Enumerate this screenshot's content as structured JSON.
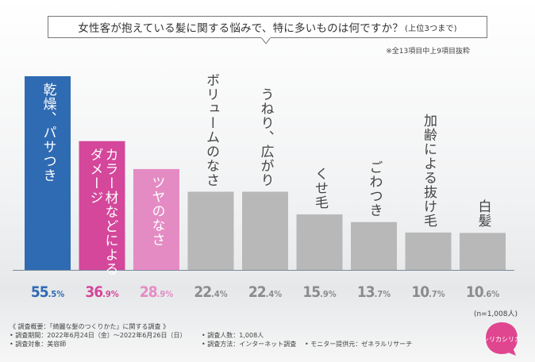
{
  "header": {
    "title": "女性客が抱えている髪に関する悩みで、特に多いものは何ですか？",
    "title_suffix": "(上位3つまで)",
    "note": "※全13項目中上9項目抜粋"
  },
  "chart_data": {
    "type": "bar",
    "categories": [
      "乾燥、パサつき",
      "カラー材などによるダメージ",
      "ツヤのなさ",
      "ボリュームのなさ",
      "うねり、広がり",
      "くせ毛",
      "ごわつき",
      "加齢による抜け毛",
      "白髪"
    ],
    "category_lines": [
      [
        "乾燥、パサつき"
      ],
      [
        "カラー材などによる",
        "ダメージ"
      ],
      [
        "ツヤのなさ"
      ],
      [
        "ボリュームのなさ"
      ],
      [
        "うねり、広がり"
      ],
      [
        "くせ毛"
      ],
      [
        "ごわつき"
      ],
      [
        "加齢による抜け毛"
      ],
      [
        "白髪"
      ]
    ],
    "values": [
      55.5,
      36.9,
      28.9,
      22.4,
      22.4,
      15.9,
      13.7,
      10.7,
      10.6
    ],
    "value_labels": [
      [
        "55",
        ".5%"
      ],
      [
        "36",
        ".9%"
      ],
      [
        "28",
        ".9%"
      ],
      [
        "22",
        ".4%"
      ],
      [
        "22",
        ".4%"
      ],
      [
        "15",
        ".9%"
      ],
      [
        "13",
        ".7%"
      ],
      [
        "10",
        ".7%"
      ],
      [
        "10",
        ".6%"
      ]
    ],
    "ylim": [
      0,
      55.5
    ],
    "colors": [
      "#2f6bb3",
      "#d4479b",
      "#e58bc4",
      "#b8b8b8",
      "#b8b8b8",
      "#b8b8b8",
      "#b8b8b8",
      "#b8b8b8",
      "#b8b8b8"
    ],
    "label_colors": [
      "#2f6bb3",
      "#d4479b",
      "#e58bc4",
      "#8c8c8c",
      "#8c8c8c",
      "#8c8c8c",
      "#8c8c8c",
      "#8c8c8c",
      "#8c8c8c"
    ],
    "grid": false,
    "n_label": "(n=1,008人)"
  },
  "footer": {
    "overview": "《 調査概要：「綺麗な髪のつくりかた」に関する調査 》",
    "period": "• 調査期間：2022年6月24日（金）～2022年6月26日（日）",
    "target": "• 調査対象：美容師",
    "count": "• 調査人数：1,008人",
    "method": "• 調査方法：インターネット調査",
    "provider": "• モニター提供元：ゼネラルリサーチ"
  },
  "logo": {
    "text": "シリカシリカ"
  }
}
